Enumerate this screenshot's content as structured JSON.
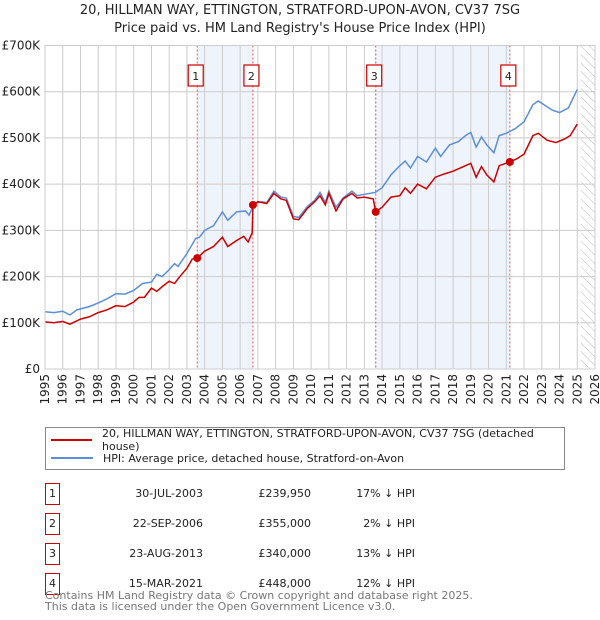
{
  "header": {
    "title": "20, HILLMAN WAY, ETTINGTON, STRATFORD-UPON-AVON, CV37 7SG",
    "subtitle": "Price paid vs. HM Land Registry's House Price Index (HPI)"
  },
  "chart_data": {
    "type": "line",
    "title": "20, HILLMAN WAY, ETTINGTON, STRATFORD-UPON-AVON, CV37 7SG",
    "subtitle": "Price paid vs. HM Land Registry's House Price Index (HPI)",
    "xlim": [
      1995,
      2026
    ],
    "ylim": [
      0,
      700000
    ],
    "x_ticks": [
      "1995",
      "1996",
      "1997",
      "1998",
      "1999",
      "2000",
      "2001",
      "2002",
      "2003",
      "2004",
      "2005",
      "2006",
      "2007",
      "2008",
      "2009",
      "2010",
      "2011",
      "2012",
      "2013",
      "2014",
      "2015",
      "2016",
      "2017",
      "2018",
      "2019",
      "2020",
      "2021",
      "2022",
      "2023",
      "2024",
      "2025",
      "2026"
    ],
    "y_ticks": [
      {
        "v": 0,
        "label": "£0"
      },
      {
        "v": 100000,
        "label": "£100K"
      },
      {
        "v": 200000,
        "label": "£200K"
      },
      {
        "v": 300000,
        "label": "£300K"
      },
      {
        "v": 400000,
        "label": "£400K"
      },
      {
        "v": 500000,
        "label": "£500K"
      },
      {
        "v": 600000,
        "label": "£600K"
      },
      {
        "v": 700000,
        "label": "£700K"
      }
    ],
    "grid": true,
    "forecast_hatch_from": 2025.2,
    "series": [
      {
        "name": "20, HILLMAN WAY, ETTINGTON, STRATFORD-UPON-AVON, CV37 7SG (detached house)",
        "color": "#cc0000",
        "points": [
          [
            1995,
            102
          ],
          [
            1995.5,
            100
          ],
          [
            1996,
            103
          ],
          [
            1996.4,
            97
          ],
          [
            1997,
            108
          ],
          [
            1997.5,
            113
          ],
          [
            1998,
            122
          ],
          [
            1998.5,
            128
          ],
          [
            1999,
            137
          ],
          [
            1999.5,
            135
          ],
          [
            2000,
            145
          ],
          [
            2000.3,
            155
          ],
          [
            2000.6,
            155
          ],
          [
            2001,
            175
          ],
          [
            2001.3,
            168
          ],
          [
            2001.6,
            178
          ],
          [
            2002,
            190
          ],
          [
            2002.3,
            185
          ],
          [
            2002.6,
            200
          ],
          [
            2003,
            218
          ],
          [
            2003.3,
            238
          ],
          [
            2003.58,
            239.95
          ],
          [
            2004,
            255
          ],
          [
            2004.5,
            265
          ],
          [
            2005,
            285
          ],
          [
            2005.3,
            265
          ],
          [
            2005.8,
            278
          ],
          [
            2006.2,
            287
          ],
          [
            2006.45,
            275
          ],
          [
            2006.68,
            295
          ],
          [
            2006.72,
            355
          ],
          [
            2007,
            362
          ],
          [
            2007.5,
            358
          ],
          [
            2007.9,
            380
          ],
          [
            2008.3,
            368
          ],
          [
            2008.6,
            365
          ],
          [
            2009,
            325
          ],
          [
            2009.3,
            323
          ],
          [
            2009.8,
            348
          ],
          [
            2010.2,
            362
          ],
          [
            2010.5,
            375
          ],
          [
            2010.8,
            355
          ],
          [
            2011,
            380
          ],
          [
            2011.4,
            342
          ],
          [
            2011.8,
            368
          ],
          [
            2012.3,
            380
          ],
          [
            2012.6,
            370
          ],
          [
            2013,
            372
          ],
          [
            2013.5,
            368
          ],
          [
            2013.64,
            340
          ],
          [
            2014,
            350
          ],
          [
            2014.5,
            372
          ],
          [
            2015,
            375
          ],
          [
            2015.3,
            392
          ],
          [
            2015.6,
            380
          ],
          [
            2016,
            400
          ],
          [
            2016.5,
            390
          ],
          [
            2017,
            415
          ],
          [
            2017.5,
            422
          ],
          [
            2018,
            428
          ],
          [
            2018.7,
            440
          ],
          [
            2019,
            445
          ],
          [
            2019.3,
            415
          ],
          [
            2019.6,
            438
          ],
          [
            2019.9,
            420
          ],
          [
            2020.3,
            405
          ],
          [
            2020.6,
            440
          ],
          [
            2021.2,
            448
          ],
          [
            2021.6,
            455
          ],
          [
            2022,
            465
          ],
          [
            2022.5,
            505
          ],
          [
            2022.8,
            510
          ],
          [
            2023.3,
            495
          ],
          [
            2023.8,
            490
          ],
          [
            2024.3,
            498
          ],
          [
            2024.6,
            505
          ],
          [
            2025,
            530
          ]
        ]
      },
      {
        "name": "HPI: Average price, detached house, Stratford-on-Avon",
        "color": "#5b8fd6",
        "points": [
          [
            1995,
            124
          ],
          [
            1995.5,
            122
          ],
          [
            1996,
            125
          ],
          [
            1996.4,
            117
          ],
          [
            1996.8,
            128
          ],
          [
            1997.5,
            135
          ],
          [
            1998,
            143
          ],
          [
            1998.5,
            152
          ],
          [
            1999,
            163
          ],
          [
            1999.5,
            162
          ],
          [
            2000,
            170
          ],
          [
            2000.5,
            185
          ],
          [
            2001,
            188
          ],
          [
            2001.3,
            205
          ],
          [
            2001.6,
            200
          ],
          [
            2002,
            215
          ],
          [
            2002.3,
            228
          ],
          [
            2002.5,
            222
          ],
          [
            2003,
            250
          ],
          [
            2003.5,
            283
          ],
          [
            2003.7,
            285
          ],
          [
            2004,
            300
          ],
          [
            2004.5,
            310
          ],
          [
            2005,
            340
          ],
          [
            2005.3,
            322
          ],
          [
            2005.8,
            340
          ],
          [
            2006.3,
            342
          ],
          [
            2006.5,
            333
          ],
          [
            2006.8,
            358
          ],
          [
            2007.2,
            362
          ],
          [
            2007.5,
            360
          ],
          [
            2007.9,
            385
          ],
          [
            2008.3,
            372
          ],
          [
            2008.6,
            370
          ],
          [
            2009,
            330
          ],
          [
            2009.3,
            328
          ],
          [
            2009.8,
            352
          ],
          [
            2010.2,
            365
          ],
          [
            2010.5,
            382
          ],
          [
            2010.8,
            360
          ],
          [
            2011,
            385
          ],
          [
            2011.4,
            350
          ],
          [
            2011.8,
            370
          ],
          [
            2012.3,
            385
          ],
          [
            2012.6,
            375
          ],
          [
            2013,
            378
          ],
          [
            2013.6,
            382
          ],
          [
            2014,
            392
          ],
          [
            2014.5,
            420
          ],
          [
            2015,
            440
          ],
          [
            2015.3,
            450
          ],
          [
            2015.6,
            435
          ],
          [
            2016,
            460
          ],
          [
            2016.5,
            448
          ],
          [
            2017,
            478
          ],
          [
            2017.3,
            460
          ],
          [
            2017.8,
            485
          ],
          [
            2018.3,
            492
          ],
          [
            2018.7,
            505
          ],
          [
            2019,
            512
          ],
          [
            2019.3,
            480
          ],
          [
            2019.6,
            502
          ],
          [
            2019.9,
            485
          ],
          [
            2020.3,
            468
          ],
          [
            2020.6,
            505
          ],
          [
            2021,
            510
          ],
          [
            2021.5,
            520
          ],
          [
            2022,
            535
          ],
          [
            2022.5,
            572
          ],
          [
            2022.8,
            580
          ],
          [
            2023.2,
            570
          ],
          [
            2023.6,
            560
          ],
          [
            2024,
            555
          ],
          [
            2024.5,
            565
          ],
          [
            2025,
            605
          ]
        ]
      }
    ],
    "sales": [
      {
        "id": "1",
        "x": 2003.58,
        "price": 239950,
        "date": "30-JUL-2003",
        "price_label": "£239,950",
        "hpi": "17% ↓ HPI"
      },
      {
        "id": "2",
        "x": 2006.72,
        "price": 355000,
        "date": "22-SEP-2006",
        "price_label": "£355,000",
        "hpi": "2% ↓ HPI"
      },
      {
        "id": "3",
        "x": 2013.64,
        "price": 340000,
        "date": "23-AUG-2013",
        "price_label": "£340,000",
        "hpi": "13% ↓ HPI"
      },
      {
        "id": "4",
        "x": 2021.2,
        "price": 448000,
        "date": "15-MAR-2021",
        "price_label": "£448,000",
        "hpi": "12% ↓ HPI"
      }
    ],
    "shaded_ranges": [
      [
        "1",
        "2"
      ],
      [
        "3",
        "4"
      ]
    ]
  },
  "legend": {
    "items": [
      {
        "label": "20, HILLMAN WAY, ETTINGTON, STRATFORD-UPON-AVON, CV37 7SG (detached house)",
        "color": "#cc0000"
      },
      {
        "label": "HPI: Average price, detached house, Stratford-on-Avon",
        "color": "#5b8fd6"
      }
    ]
  },
  "footer": {
    "line1": "Contains HM Land Registry data © Crown copyright and database right 2025.",
    "line2": "This data is licensed under the Open Government Licence v3.0."
  }
}
